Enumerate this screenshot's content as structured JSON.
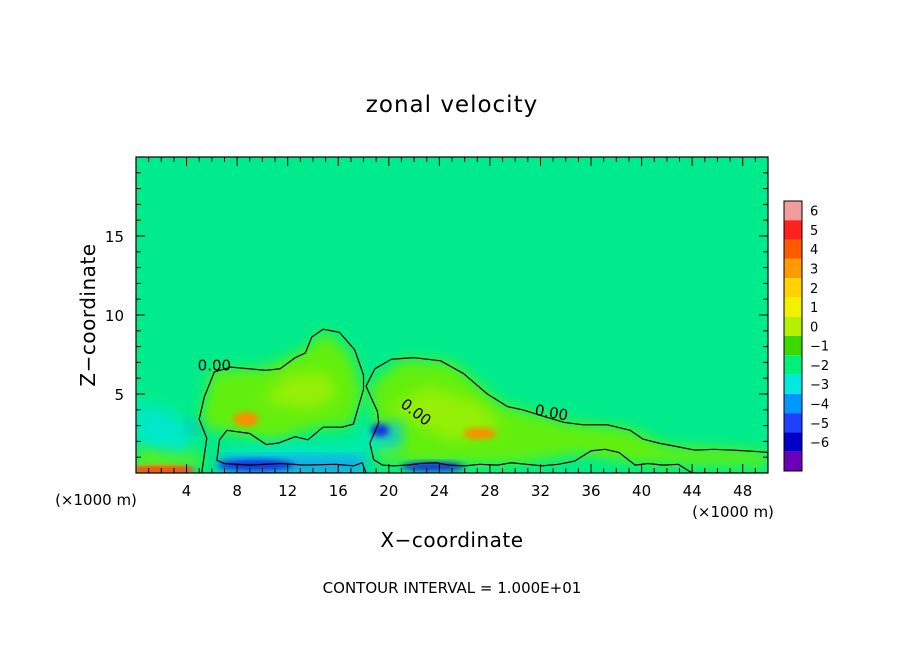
{
  "chart_data": {
    "type": "heatmap",
    "title": "zonal velocity",
    "xlabel": "X−coordinate",
    "ylabel": "Z−coordinate",
    "x_unit_label": "(×1000 m)",
    "y_unit_label": "(×1000 m)",
    "xlim": [
      0,
      50
    ],
    "ylim": [
      0,
      20
    ],
    "x_ticks": [
      4,
      8,
      12,
      16,
      20,
      24,
      28,
      32,
      36,
      40,
      44,
      48
    ],
    "x_tick_labels": [
      "4",
      "8",
      "12",
      "16",
      "20",
      "24",
      "28",
      "32",
      "36",
      "40",
      "44",
      "48"
    ],
    "y_ticks": [
      5,
      10,
      15
    ],
    "y_tick_labels": [
      "5",
      "10",
      "15"
    ],
    "footer": "CONTOUR INTERVAL = 1.000E+01",
    "contour_labels": [
      "0.00",
      "0.00",
      "0.00"
    ],
    "colorbar": {
      "levels": [
        6,
        5,
        4,
        3,
        2,
        1,
        0,
        -1,
        -2,
        -3,
        -4,
        -5,
        -6
      ],
      "labels": [
        "6",
        "5",
        "4",
        "3",
        "2",
        "1",
        "0",
        "−1",
        "−2",
        "−3",
        "−4",
        "−5",
        "−6"
      ],
      "colors": [
        "#f29c9c",
        "#ff2020",
        "#ff5a00",
        "#ff9a00",
        "#ffd200",
        "#f2f200",
        "#b4f000",
        "#3cd800",
        "#00f07a",
        "#00e8e0",
        "#0098ff",
        "#2040ff",
        "#0000c8",
        "#6a00b8"
      ]
    },
    "field_colors": {
      "background": "#00ec8c",
      "weak_positive": "#6ef000",
      "positive": "#c8f000",
      "strong_positive": "#ff8c00",
      "weak_negative": "#00e8d0",
      "negative": "#1c8cff",
      "strong_negative": "#1830e0"
    },
    "zero_contours": [
      {
        "label": "0.00",
        "points": [
          [
            5.2,
            0
          ],
          [
            5.6,
            2.2
          ],
          [
            5,
            3.4
          ],
          [
            5.4,
            4.8
          ],
          [
            6.2,
            6.4
          ],
          [
            7.5,
            6.7
          ],
          [
            10.3,
            6.5
          ],
          [
            11.4,
            6.6
          ],
          [
            12.6,
            7.3
          ],
          [
            13.4,
            7.6
          ],
          [
            13.9,
            8.6
          ],
          [
            14.8,
            9.1
          ],
          [
            16.1,
            8.9
          ],
          [
            17.3,
            7.8
          ],
          [
            18,
            6.2
          ],
          [
            18,
            5.3
          ],
          [
            17.6,
            4.2
          ],
          [
            17.2,
            3.1
          ],
          [
            16.3,
            2.9
          ],
          [
            14.8,
            2.9
          ],
          [
            13.6,
            2.1
          ],
          [
            12.6,
            2.3
          ],
          [
            11.3,
            1.9
          ],
          [
            10.3,
            1.8
          ],
          [
            9,
            2.5
          ],
          [
            7.2,
            2.7
          ],
          [
            6.6,
            2.1
          ],
          [
            6.4,
            0.8
          ],
          [
            7,
            0.6
          ],
          [
            9,
            0.5
          ],
          [
            11.5,
            0.6
          ],
          [
            13.3,
            0.5
          ],
          [
            15.8,
            0.55
          ],
          [
            17.2,
            0.45
          ],
          [
            17.9,
            0.65
          ],
          [
            18.2,
            0
          ],
          [
            5.2,
            0
          ]
        ]
      },
      {
        "label": "0.00",
        "points": [
          [
            18.2,
            5.5
          ],
          [
            18.9,
            6.6
          ],
          [
            20.2,
            7.2
          ],
          [
            22,
            7.3
          ],
          [
            24.1,
            7.1
          ],
          [
            25.9,
            6.3
          ],
          [
            27.8,
            5
          ],
          [
            29.4,
            4.2
          ],
          [
            30.6,
            4
          ],
          [
            32.4,
            3.55
          ],
          [
            33.9,
            3.2
          ],
          [
            35.4,
            3.05
          ],
          [
            37.3,
            3.05
          ],
          [
            39.1,
            2.7
          ],
          [
            40.1,
            2.15
          ],
          [
            41.3,
            1.9
          ],
          [
            42.6,
            1.7
          ],
          [
            44.2,
            1.45
          ],
          [
            45.7,
            1.5
          ],
          [
            47.2,
            1.45
          ],
          [
            49.3,
            1.35
          ],
          [
            50,
            1.3
          ],
          [
            50,
            0
          ],
          [
            44,
            0
          ],
          [
            42.9,
            0.55
          ],
          [
            41.7,
            0.5
          ],
          [
            40.5,
            0.6
          ],
          [
            39.5,
            0.5
          ],
          [
            38.2,
            1.3
          ],
          [
            37.1,
            1.5
          ],
          [
            36,
            1.4
          ],
          [
            34.7,
            0.75
          ],
          [
            33.4,
            0.55
          ],
          [
            32.1,
            0.45
          ],
          [
            30.9,
            0.55
          ],
          [
            29.7,
            0.65
          ],
          [
            28.6,
            0.5
          ],
          [
            27.2,
            0.55
          ],
          [
            26,
            0.45
          ],
          [
            24.8,
            0.5
          ],
          [
            23.7,
            0.65
          ],
          [
            22.5,
            0.6
          ],
          [
            21.4,
            0.5
          ],
          [
            20.3,
            0.45
          ],
          [
            19.5,
            0.5
          ],
          [
            18.8,
            0.85
          ],
          [
            18.5,
            1.9
          ],
          [
            18.9,
            2.6
          ],
          [
            19.2,
            3.2
          ],
          [
            19.1,
            3.9
          ],
          [
            18.7,
            4.6
          ],
          [
            18.2,
            5.5
          ]
        ]
      }
    ]
  }
}
